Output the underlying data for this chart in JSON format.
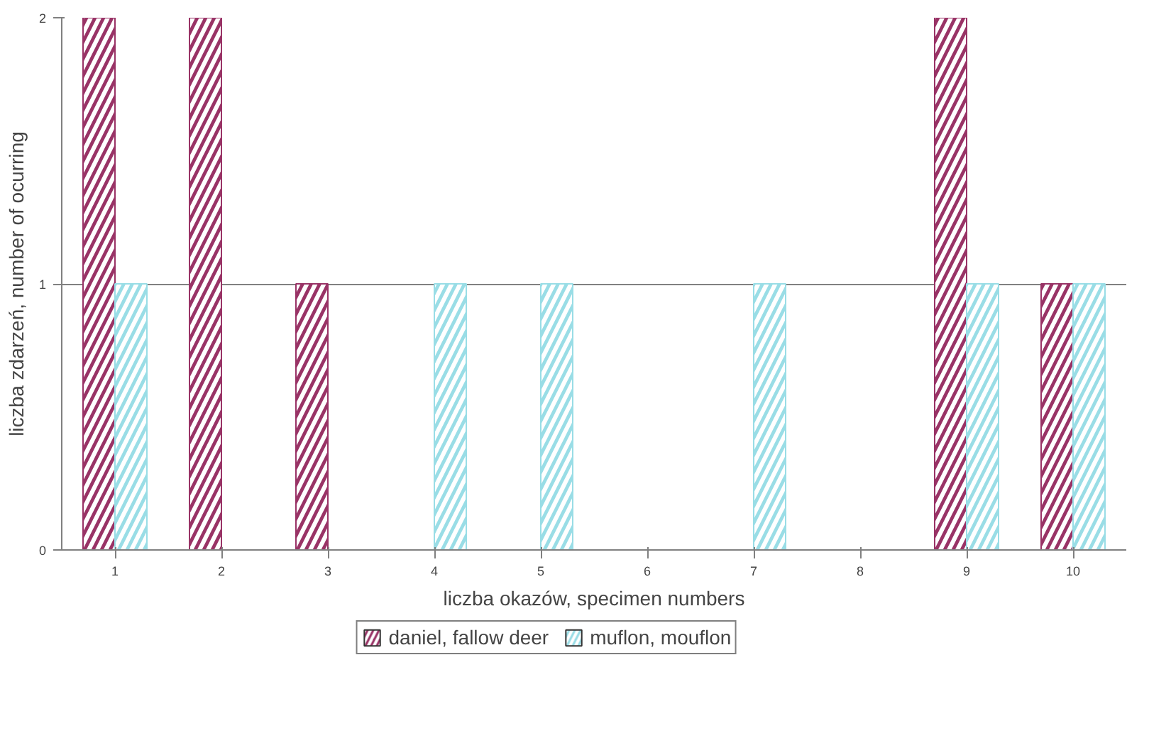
{
  "chart_data": {
    "type": "bar",
    "xlabel": "liczba okazów, specimen numbers",
    "ylabel": "liczba zdarzeń, number of ocurring",
    "categories": [
      "1",
      "2",
      "3",
      "4",
      "5",
      "6",
      "7",
      "8",
      "9",
      "10"
    ],
    "series": [
      {
        "name": "daniel, fallow deer",
        "color": "#993366",
        "values": [
          2,
          2,
          1,
          0,
          0,
          0,
          0,
          0,
          2,
          1
        ]
      },
      {
        "name": "muflon, mouflon",
        "color": "#99dde6",
        "values": [
          1,
          0,
          0,
          1,
          1,
          0,
          1,
          0,
          1,
          1
        ]
      }
    ],
    "ylim": [
      0,
      2
    ],
    "yticks": [
      0,
      1,
      2
    ],
    "grid": "y",
    "legend": "bottom"
  }
}
